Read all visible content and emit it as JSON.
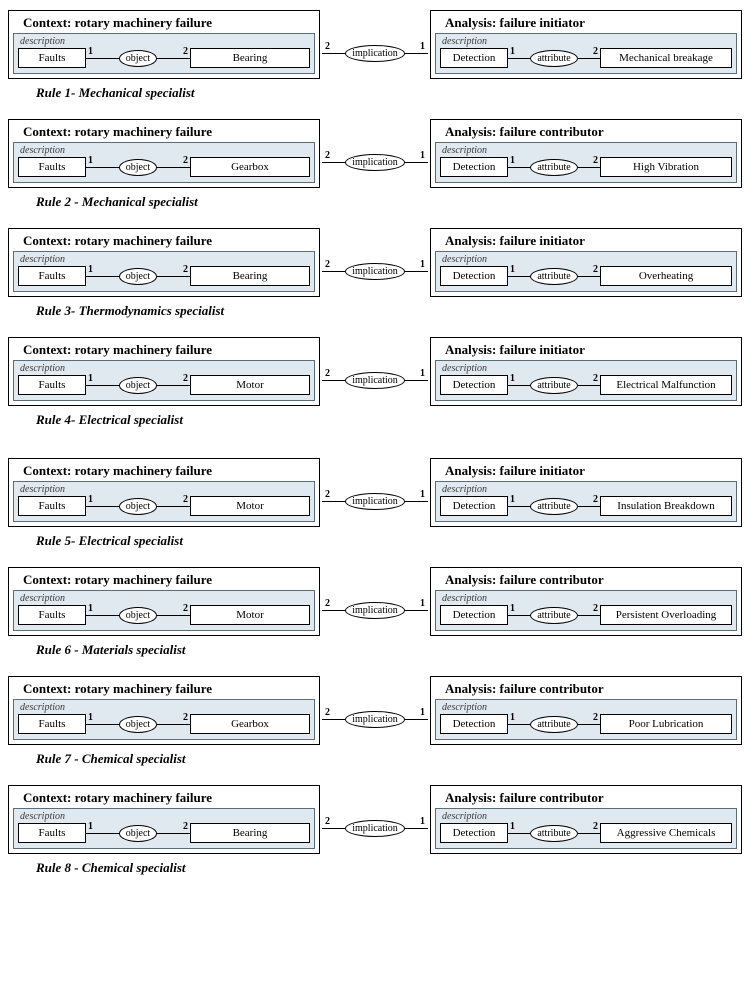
{
  "colors": {
    "panel_border": "#000000",
    "inner_border": "#5a6b7a",
    "inner_bg": "#e1e9f0",
    "page_bg": "#ffffff",
    "text": "#000000"
  },
  "common": {
    "context_title": "Context: rotatory machinery failure",
    "description_label": "description",
    "object_label": "object",
    "attribute_label": "attribute",
    "implication_label": "implication",
    "faults_label": "Faults",
    "detection_label": "Detection",
    "n1": "1",
    "n2": "2"
  },
  "rules": [
    {
      "left_title": "Context: rotary machinery failure",
      "left_b2": "Bearing",
      "right_title": "Analysis: failure initiator",
      "right_b2": "Mechanical breakage",
      "caption": "Rule 1- Mechanical specialist"
    },
    {
      "left_title": "Context: rotary machinery failure",
      "left_b2": "Gearbox",
      "right_title": "Analysis: failure contributor",
      "right_b2": "High Vibration",
      "caption": "Rule 2 - Mechanical specialist"
    },
    {
      "left_title": "Context: rotary machinery failure",
      "left_b2": "Bearing",
      "right_title": "Analysis: failure initiator",
      "right_b2": "Overheating",
      "caption": "Rule 3- Thermodynamics specialist"
    },
    {
      "left_title": "Context: rotary machinery failure",
      "left_b2": "Motor",
      "right_title": "Analysis: failure initiator",
      "right_b2": "Electrical Malfunction",
      "caption": "Rule 4- Electrical specialist"
    },
    {
      "left_title": "Context: rotary machinery failure",
      "left_b2": "Motor",
      "right_title": "Analysis: failure initiator",
      "right_b2": "Insulation Breakdown",
      "caption": "Rule 5- Electrical specialist"
    },
    {
      "left_title": "Context: rotary machinery failure",
      "left_b2": "Motor",
      "right_title": "Analysis: failure contributor",
      "right_b2": "Persistent Overloading",
      "caption": "Rule 6 - Materials specialist"
    },
    {
      "left_title": "Context: rotary machinery failure",
      "left_b2": "Gearbox",
      "right_title": "Analysis: failure contributor",
      "right_b2": "Poor Lubrication",
      "caption": "Rule 7 - Chemical specialist"
    },
    {
      "left_title": "Context: rotary machinery failure",
      "left_b2": "Bearing",
      "right_title": "Analysis: failure contributor",
      "right_b2": "Aggressive Chemicals",
      "caption": "Rule 8 - Chemical specialist"
    }
  ]
}
